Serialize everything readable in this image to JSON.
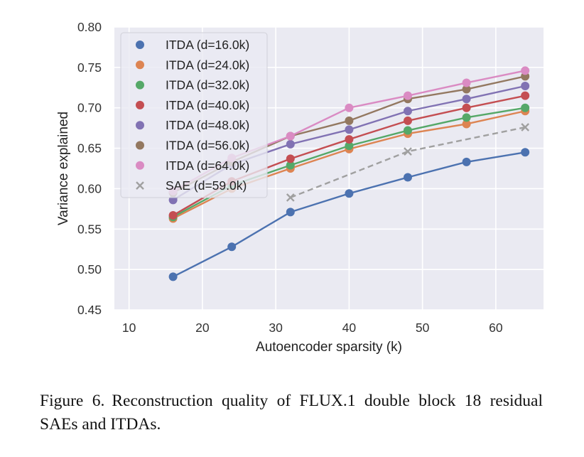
{
  "chart_data": {
    "type": "line",
    "xlabel": "Autoencoder sparsity (k)",
    "ylabel": "Variance explained",
    "xlim": [
      8,
      66.5
    ],
    "ylim": [
      0.45,
      0.8
    ],
    "x_ticks": [
      10,
      20,
      30,
      40,
      50,
      60
    ],
    "y_ticks": [
      0.45,
      0.5,
      0.55,
      0.6,
      0.65,
      0.7,
      0.75,
      0.8
    ],
    "grid": true,
    "legend_position": "top-left",
    "series": [
      {
        "name": "ITDA (d=16.0k)",
        "color": "#4c72b0",
        "marker": "circle",
        "style": "solid",
        "x": [
          16,
          24,
          32,
          40,
          48,
          56,
          64
        ],
        "y": [
          0.491,
          0.528,
          0.571,
          0.594,
          0.614,
          0.633,
          0.645
        ]
      },
      {
        "name": "ITDA (d=24.0k)",
        "color": "#dd8452",
        "marker": "circle",
        "style": "solid",
        "x": [
          16,
          24,
          32,
          40,
          48,
          56,
          64
        ],
        "y": [
          0.563,
          0.6,
          0.625,
          0.649,
          0.668,
          0.68,
          0.696
        ]
      },
      {
        "name": "ITDA (d=32.0k)",
        "color": "#55a868",
        "marker": "circle",
        "style": "solid",
        "x": [
          16,
          24,
          32,
          40,
          48,
          56,
          64
        ],
        "y": [
          0.565,
          0.604,
          0.629,
          0.653,
          0.672,
          0.688,
          0.7
        ]
      },
      {
        "name": "ITDA (d=40.0k)",
        "color": "#c44e52",
        "marker": "circle",
        "style": "solid",
        "x": [
          16,
          24,
          32,
          40,
          48,
          56,
          64
        ],
        "y": [
          0.567,
          0.609,
          0.637,
          0.661,
          0.684,
          0.7,
          0.715
        ]
      },
      {
        "name": "ITDA (d=48.0k)",
        "color": "#8172b3",
        "marker": "circle",
        "style": "solid",
        "x": [
          16,
          24,
          32,
          40,
          48,
          56,
          64
        ],
        "y": [
          0.586,
          0.63,
          0.655,
          0.673,
          0.696,
          0.711,
          0.727
        ]
      },
      {
        "name": "ITDA (d=56.0k)",
        "color": "#937860",
        "marker": "circle",
        "style": "solid",
        "x": [
          16,
          24,
          32,
          40,
          48,
          56,
          64
        ],
        "y": [
          0.595,
          0.633,
          0.665,
          0.684,
          0.711,
          0.723,
          0.739
        ]
      },
      {
        "name": "ITDA (d=64.0k)",
        "color": "#da8bc3",
        "marker": "circle",
        "style": "solid",
        "x": [
          16,
          24,
          32,
          40,
          48,
          56,
          64
        ],
        "y": [
          0.597,
          0.638,
          0.665,
          0.7,
          0.715,
          0.731,
          0.746
        ]
      },
      {
        "name": "SAE (d=59.0k)",
        "color": "#a0a0a0",
        "marker": "x",
        "style": "dashed",
        "x": [
          32,
          48,
          64
        ],
        "y": [
          0.589,
          0.646,
          0.676
        ]
      }
    ]
  },
  "caption": {
    "label": "Figure 6.",
    "text": "Reconstruction quality of FLUX.1 double block 18 residual SAEs and ITDAs."
  }
}
